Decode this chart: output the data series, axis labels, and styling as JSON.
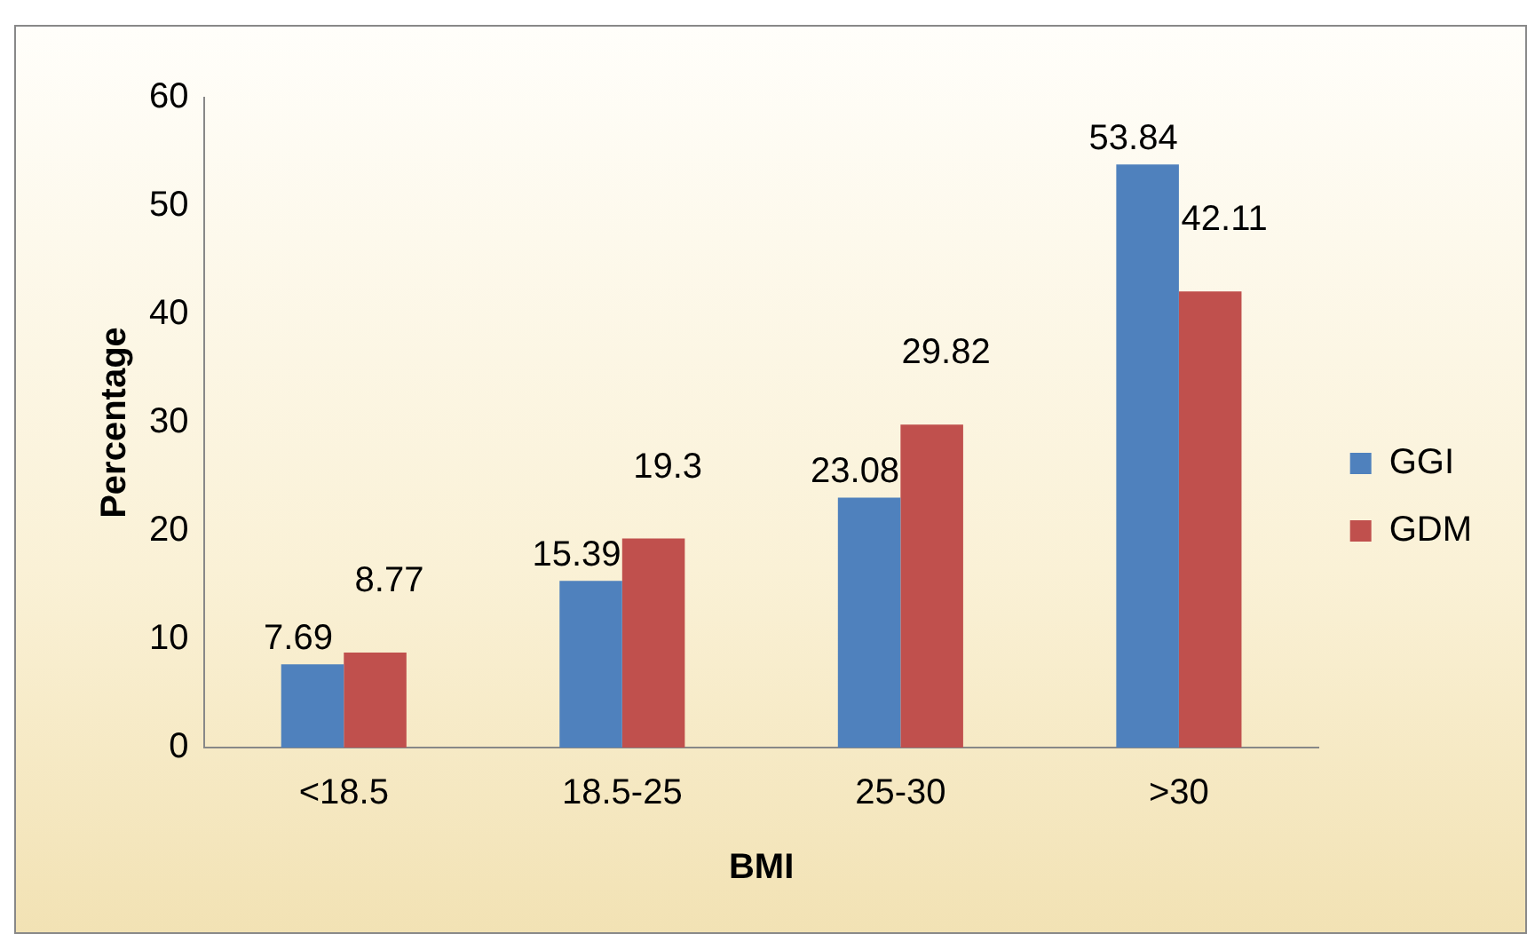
{
  "chart_data": {
    "type": "bar",
    "xlabel": "BMI",
    "ylabel": "Percentage",
    "categories": [
      "<18.5",
      "18.5-25",
      "25-30",
      ">30"
    ],
    "series": [
      {
        "name": "GGI",
        "color": "#4f81bd",
        "values": [
          7.69,
          15.39,
          23.08,
          53.84
        ]
      },
      {
        "name": "GDM",
        "color": "#c0504d",
        "values": [
          8.77,
          19.3,
          29.82,
          42.11
        ]
      }
    ],
    "ylim": [
      0,
      60
    ],
    "yticks": [
      0,
      10,
      20,
      30,
      40,
      50,
      60
    ],
    "grid": false,
    "legend": "right",
    "data_labels": true
  }
}
